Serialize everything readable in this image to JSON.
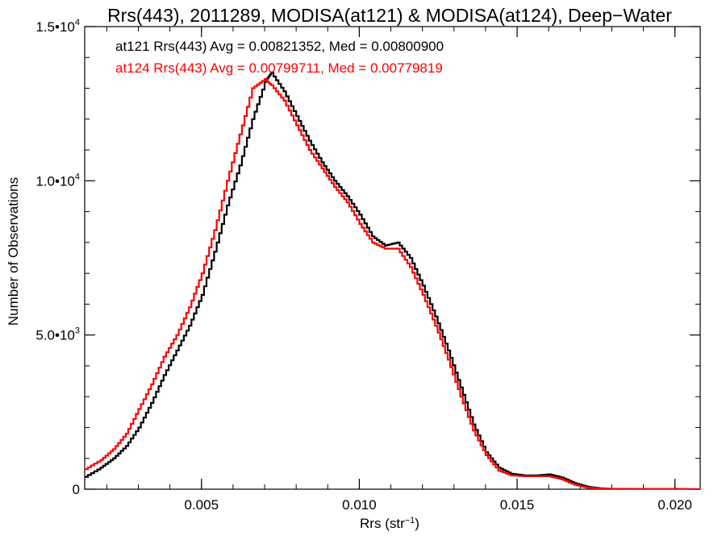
{
  "chart_data": {
    "type": "line",
    "step": true,
    "title": "Rrs(443), 2011289, MODISA(at121) & MODISA(at124), Deep−Water",
    "xlabel": "Rrs (str",
    "xlabel_sup": "−1",
    "xlabel_tail": ")",
    "ylabel": "Number of Observations",
    "xlim": [
      0.0013,
      0.0208
    ],
    "ylim": [
      0,
      15000
    ],
    "grid": false,
    "x_ticks": [
      {
        "value": 0.005,
        "label": "0.005"
      },
      {
        "value": 0.01,
        "label": "0.010"
      },
      {
        "value": 0.015,
        "label": "0.015"
      },
      {
        "value": 0.02,
        "label": "0.020"
      }
    ],
    "y_ticks": [
      {
        "value": 0,
        "label": "0",
        "sup": ""
      },
      {
        "value": 5000,
        "label": "5.0•10",
        "sup": "3"
      },
      {
        "value": 10000,
        "label": "1.0•10",
        "sup": "4"
      },
      {
        "value": 15000,
        "label": "1.5•10",
        "sup": "4"
      }
    ],
    "annotations": [
      {
        "text": "at121 Rrs(443) Avg = 0.00821352, Med = 0.00800900",
        "color": "#000000"
      },
      {
        "text": "at124 Rrs(443) Avg = 0.00799711, Med = 0.00779819",
        "color": "#ff0000"
      }
    ],
    "series": [
      {
        "color": "#000000",
        "points": [
          [
            0.0013,
            400
          ],
          [
            0.0018,
            700
          ],
          [
            0.0022,
            1000
          ],
          [
            0.0026,
            1400
          ],
          [
            0.003,
            2000
          ],
          [
            0.0034,
            2800
          ],
          [
            0.0038,
            3700
          ],
          [
            0.0042,
            4500
          ],
          [
            0.0046,
            5300
          ],
          [
            0.005,
            6300
          ],
          [
            0.0054,
            7700
          ],
          [
            0.0058,
            9200
          ],
          [
            0.0062,
            10500
          ],
          [
            0.0066,
            12000
          ],
          [
            0.007,
            13200
          ],
          [
            0.0072,
            13500
          ],
          [
            0.0076,
            12900
          ],
          [
            0.008,
            12100
          ],
          [
            0.0084,
            11300
          ],
          [
            0.0088,
            10600
          ],
          [
            0.0092,
            10000
          ],
          [
            0.0096,
            9500
          ],
          [
            0.01,
            8900
          ],
          [
            0.0104,
            8200
          ],
          [
            0.0108,
            7900
          ],
          [
            0.0112,
            8000
          ],
          [
            0.0116,
            7500
          ],
          [
            0.012,
            6600
          ],
          [
            0.0124,
            5600
          ],
          [
            0.0128,
            4500
          ],
          [
            0.0132,
            3300
          ],
          [
            0.0136,
            2100
          ],
          [
            0.014,
            1200
          ],
          [
            0.0144,
            700
          ],
          [
            0.0148,
            500
          ],
          [
            0.0152,
            450
          ],
          [
            0.0156,
            450
          ],
          [
            0.016,
            480
          ],
          [
            0.0164,
            380
          ],
          [
            0.0168,
            200
          ],
          [
            0.0172,
            80
          ],
          [
            0.0176,
            30
          ],
          [
            0.018,
            10
          ],
          [
            0.019,
            5
          ],
          [
            0.0208,
            0
          ]
        ]
      },
      {
        "color": "#ff0000",
        "points": [
          [
            0.0013,
            650
          ],
          [
            0.0018,
            950
          ],
          [
            0.0022,
            1300
          ],
          [
            0.0026,
            1800
          ],
          [
            0.003,
            2600
          ],
          [
            0.0034,
            3400
          ],
          [
            0.0038,
            4300
          ],
          [
            0.0042,
            5000
          ],
          [
            0.0046,
            5900
          ],
          [
            0.005,
            7000
          ],
          [
            0.0054,
            8400
          ],
          [
            0.0058,
            10000
          ],
          [
            0.0062,
            11500
          ],
          [
            0.0066,
            13000
          ],
          [
            0.007,
            13300
          ],
          [
            0.0072,
            13100
          ],
          [
            0.0076,
            12600
          ],
          [
            0.008,
            11800
          ],
          [
            0.0084,
            11000
          ],
          [
            0.0088,
            10400
          ],
          [
            0.0092,
            9800
          ],
          [
            0.0096,
            9300
          ],
          [
            0.01,
            8600
          ],
          [
            0.0104,
            8000
          ],
          [
            0.0108,
            7800
          ],
          [
            0.0112,
            7800
          ],
          [
            0.0116,
            7200
          ],
          [
            0.012,
            6300
          ],
          [
            0.0124,
            5300
          ],
          [
            0.0128,
            4200
          ],
          [
            0.0132,
            3000
          ],
          [
            0.0136,
            1900
          ],
          [
            0.014,
            1100
          ],
          [
            0.0144,
            600
          ],
          [
            0.0148,
            450
          ],
          [
            0.0152,
            420
          ],
          [
            0.0156,
            420
          ],
          [
            0.016,
            420
          ],
          [
            0.0164,
            320
          ],
          [
            0.0168,
            150
          ],
          [
            0.0172,
            50
          ],
          [
            0.0176,
            20
          ],
          [
            0.018,
            8
          ],
          [
            0.019,
            3
          ],
          [
            0.0208,
            0
          ]
        ]
      }
    ]
  }
}
